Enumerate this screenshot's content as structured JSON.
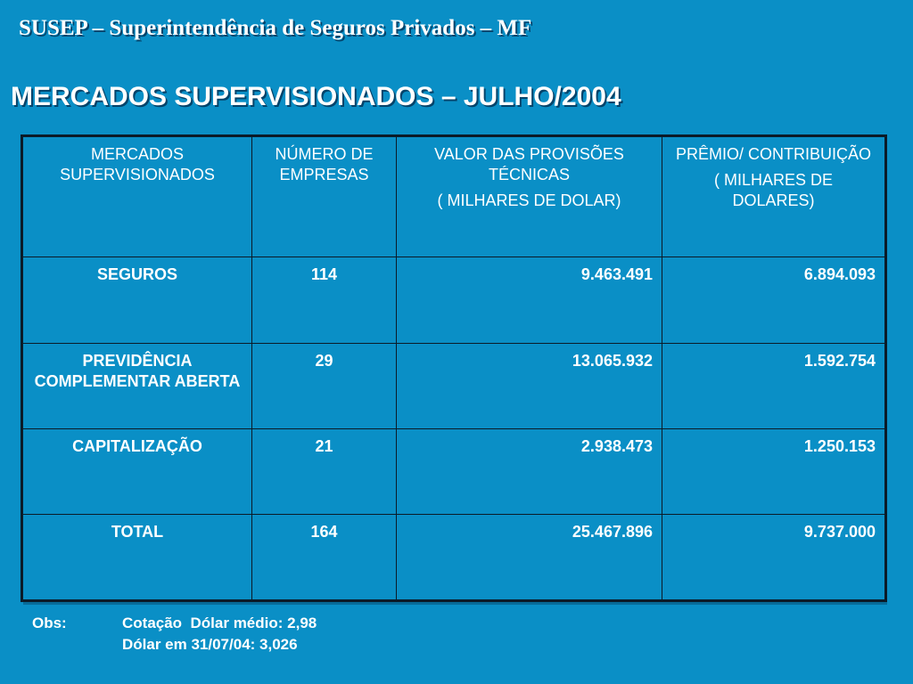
{
  "header": {
    "org_line": "SUSEP – Superintendência de Seguros Privados – MF"
  },
  "title": "MERCADOS SUPERVISIONADOS – JULHO/2004",
  "table": {
    "columns": [
      {
        "line1": "MERCADOS SUPERVISIONADOS",
        "line2": ""
      },
      {
        "line1": "NÚMERO DE EMPRESAS",
        "line2": ""
      },
      {
        "line1": "VALOR DAS PROVISÕES TÉCNICAS",
        "line2": "( MILHARES DE DOLAR)"
      },
      {
        "line1": "PRÊMIO/ CONTRIBUIÇÃO",
        "line2": "( MILHARES DE DOLARES)"
      }
    ],
    "rows": [
      {
        "mercado": "SEGUROS",
        "empresas": "114",
        "provisoes": "9.463.491",
        "premio": "6.894.093"
      },
      {
        "mercado": "PREVIDÊNCIA COMPLEMENTAR ABERTA",
        "empresas": "29",
        "provisoes": "13.065.932",
        "premio": "1.592.754"
      },
      {
        "mercado": "CAPITALIZAÇÃO",
        "empresas": "21",
        "provisoes": "2.938.473",
        "premio": "1.250.153"
      },
      {
        "mercado": "TOTAL",
        "empresas": "164",
        "provisoes": "25.467.896",
        "premio": "9.737.000"
      }
    ]
  },
  "obs": {
    "label": "Obs:",
    "line1": "Cotação  Dólar médio: 2,98",
    "line2": "Dólar em 31/07/04: 3,026"
  },
  "colors": {
    "background": "#0a8fc6",
    "text": "#ffffff",
    "border": "#0b1b28"
  }
}
